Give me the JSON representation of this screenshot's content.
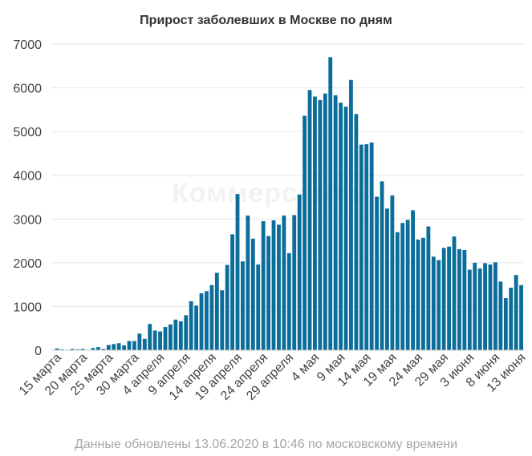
{
  "chart_data": {
    "type": "bar",
    "title": "Прирост заболевших в Москве по дням",
    "xlabel": "",
    "ylabel": "",
    "ylim": [
      0,
      7000
    ],
    "yticks": [
      0,
      1000,
      2000,
      3000,
      4000,
      5000,
      6000,
      7000
    ],
    "grid": true,
    "legend": "none",
    "categories": [
      "15 марта",
      "16 марта",
      "17 марта",
      "18 марта",
      "19 марта",
      "20 марта",
      "21 марта",
      "22 марта",
      "23 марта",
      "24 марта",
      "25 марта",
      "26 марта",
      "27 марта",
      "28 марта",
      "29 марта",
      "30 марта",
      "31 марта",
      "1 апреля",
      "2 апреля",
      "3 апреля",
      "4 апреля",
      "5 апреля",
      "6 апреля",
      "7 апреля",
      "8 апреля",
      "9 апреля",
      "10 апреля",
      "11 апреля",
      "12 апреля",
      "13 апреля",
      "14 апреля",
      "15 апреля",
      "16 апреля",
      "17 апреля",
      "18 апреля",
      "19 апреля",
      "20 апреля",
      "21 апреля",
      "22 апреля",
      "23 апреля",
      "24 апреля",
      "25 апреля",
      "26 апреля",
      "27 апреля",
      "28 апреля",
      "29 апреля",
      "30 апреля",
      "1 мая",
      "2 мая",
      "3 мая",
      "4 мая",
      "5 мая",
      "6 мая",
      "7 мая",
      "8 мая",
      "9 мая",
      "10 мая",
      "11 мая",
      "12 мая",
      "13 мая",
      "14 мая",
      "15 мая",
      "16 мая",
      "17 мая",
      "18 мая",
      "19 мая",
      "20 мая",
      "21 мая",
      "22 мая",
      "23 мая",
      "24 мая",
      "25 мая",
      "26 мая",
      "27 мая",
      "28 мая",
      "29 мая",
      "30 мая",
      "31 мая",
      "1 июня",
      "2 июня",
      "3 июня",
      "4 июня",
      "5 июня",
      "6 июня",
      "7 июня",
      "8 июня",
      "9 июня",
      "10 июня",
      "11 июня",
      "12 июня",
      "13 июня"
    ],
    "xtick_labels": [
      {
        "index": 0,
        "label": "15 марта"
      },
      {
        "index": 5,
        "label": "20 марта"
      },
      {
        "index": 10,
        "label": "25 марта"
      },
      {
        "index": 15,
        "label": "30 марта"
      },
      {
        "index": 20,
        "label": "4 апреля"
      },
      {
        "index": 25,
        "label": "9 апреля"
      },
      {
        "index": 30,
        "label": "14 апреля"
      },
      {
        "index": 35,
        "label": "19 апреля"
      },
      {
        "index": 40,
        "label": "24 апреля"
      },
      {
        "index": 45,
        "label": "29 апреля"
      },
      {
        "index": 50,
        "label": "4 мая"
      },
      {
        "index": 55,
        "label": "9 мая"
      },
      {
        "index": 60,
        "label": "14 мая"
      },
      {
        "index": 65,
        "label": "19 мая"
      },
      {
        "index": 70,
        "label": "24 мая"
      },
      {
        "index": 75,
        "label": "29 мая"
      },
      {
        "index": 80,
        "label": "3 июня"
      },
      {
        "index": 85,
        "label": "8 июня"
      },
      {
        "index": 90,
        "label": "13 июня"
      }
    ],
    "values": [
      40,
      20,
      10,
      30,
      20,
      30,
      10,
      50,
      70,
      30,
      120,
      140,
      160,
      110,
      210,
      210,
      380,
      260,
      600,
      450,
      430,
      530,
      590,
      700,
      660,
      800,
      1120,
      1020,
      1300,
      1350,
      1490,
      1770,
      1370,
      1950,
      2650,
      3570,
      2030,
      3080,
      2550,
      1960,
      2950,
      2610,
      2970,
      2870,
      3080,
      2220,
      3090,
      3560,
      5360,
      5950,
      5800,
      5720,
      5870,
      6700,
      5830,
      5660,
      5570,
      6180,
      5400,
      4700,
      4710,
      4750,
      3510,
      3860,
      3240,
      3540,
      2700,
      2910,
      2980,
      3200,
      2530,
      2570,
      2830,
      2140,
      2060,
      2340,
      2370,
      2600,
      2310,
      2290,
      1840,
      2000,
      1870,
      1990,
      1960,
      2010,
      1570,
      1190,
      1430,
      1720,
      1490
    ],
    "bar_color": "#0b6d9a",
    "grid_color": "#e6e6e6"
  },
  "watermark": "Коммерсантъ",
  "footnote": "Данные обновлены 13.06.2020 в 10:46 по московскому времени"
}
